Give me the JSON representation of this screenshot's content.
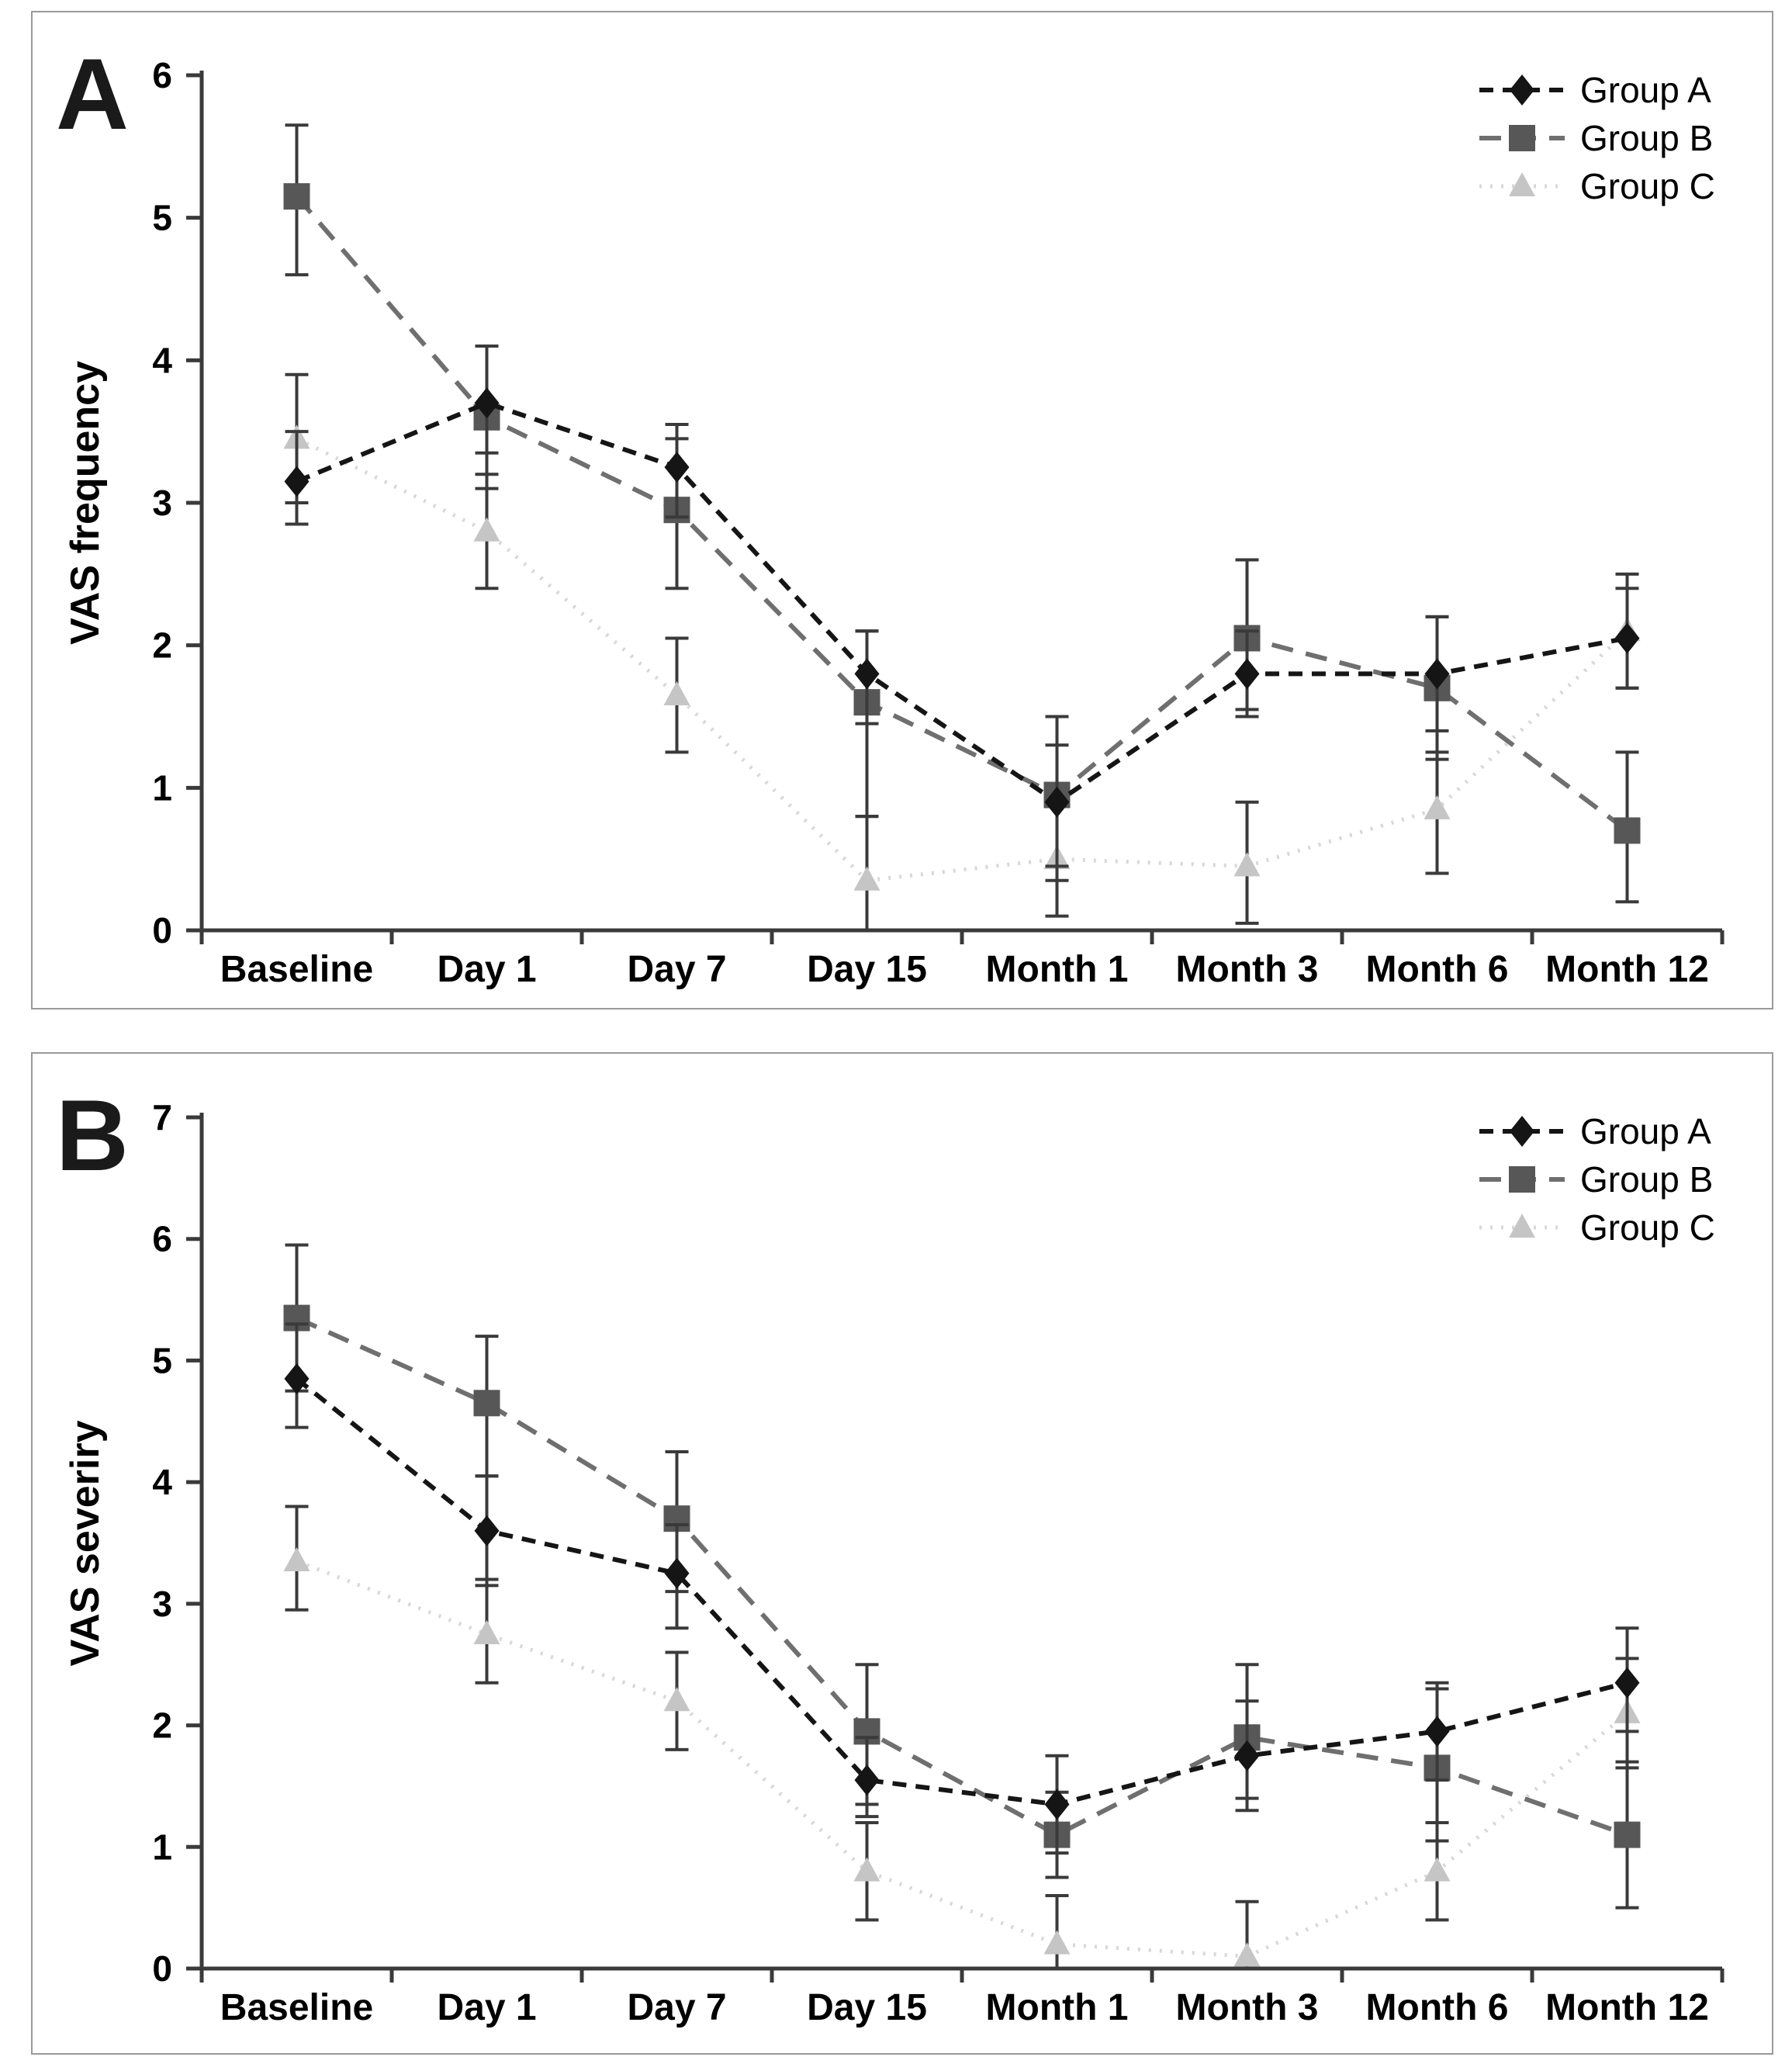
{
  "figure": {
    "type": "two-panel scientific line figure with error bars",
    "panel_count": 2
  },
  "style": {
    "axis_color": "#3a3a3a",
    "error_bar_color": "#3a3a3a",
    "text_color": "#000000",
    "panel_border_color": "#9a9a9a",
    "background": "#ffffff"
  },
  "chart_data": [
    {
      "type": "line",
      "panel_label": "A",
      "ylabel": "VAS frequency",
      "xlabel": "",
      "ylim": [
        0,
        6
      ],
      "yticks": [
        0,
        1,
        2,
        3,
        4,
        5,
        6
      ],
      "grid": false,
      "legend_position": "top-right",
      "categories": [
        "Baseline",
        "Day 1",
        "Day 7",
        "Day 15",
        "Month 1",
        "Month 3",
        "Month 6",
        "Month 12"
      ],
      "series": [
        {
          "name": "Group A",
          "marker": "diamond",
          "color": "#151515",
          "line_color": "#151515",
          "line_dash": "18 12",
          "line_width": 6,
          "values": [
            3.15,
            3.7,
            3.25,
            1.8,
            0.9,
            1.8,
            1.8,
            2.05
          ],
          "error_lower": [
            2.85,
            3.35,
            2.9,
            1.45,
            0.35,
            1.5,
            1.4,
            1.7
          ],
          "error_upper": [
            3.5,
            4.1,
            3.55,
            2.1,
            1.3,
            2.1,
            2.2,
            2.4
          ]
        },
        {
          "name": "Group B",
          "marker": "square",
          "color": "#575757",
          "line_color": "#6f6f6f",
          "line_dash": "28 17",
          "line_width": 6,
          "values": [
            5.15,
            3.6,
            2.95,
            1.6,
            0.95,
            2.05,
            1.7,
            0.7
          ],
          "error_lower": [
            4.6,
            3.1,
            2.4,
            0.8,
            0.45,
            1.55,
            1.2,
            0.2
          ],
          "error_upper": [
            5.65,
            4.1,
            3.45,
            2.1,
            1.5,
            2.6,
            2.2,
            1.25
          ]
        },
        {
          "name": "Group C",
          "marker": "triangle",
          "color": "#c5c5c5",
          "line_color": "#d8d8d8",
          "line_dash": "3 11",
          "line_width": 5,
          "values": [
            3.45,
            2.8,
            1.65,
            0.35,
            0.5,
            0.45,
            0.85,
            2.1
          ],
          "error_lower": [
            3.0,
            2.4,
            1.25,
            0.0,
            0.1,
            0.05,
            0.4,
            1.7
          ],
          "error_upper": [
            3.9,
            3.2,
            2.05,
            0.8,
            0.9,
            0.9,
            1.25,
            2.5
          ]
        }
      ]
    },
    {
      "type": "line",
      "panel_label": "B",
      "ylabel": "VAS severiry",
      "xlabel": "",
      "ylim": [
        0,
        7
      ],
      "yticks": [
        0,
        1,
        2,
        3,
        4,
        5,
        6,
        7
      ],
      "grid": false,
      "legend_position": "top-right",
      "categories": [
        "Baseline",
        "Day 1",
        "Day 7",
        "Day 15",
        "Month 1",
        "Month 3",
        "Month 6",
        "Month 12"
      ],
      "series": [
        {
          "name": "Group A",
          "marker": "diamond",
          "color": "#151515",
          "line_color": "#151515",
          "line_dash": "18 12",
          "line_width": 6,
          "values": [
            4.85,
            3.6,
            3.25,
            1.55,
            1.35,
            1.75,
            1.95,
            2.35
          ],
          "error_lower": [
            4.45,
            3.15,
            2.8,
            1.25,
            0.95,
            1.3,
            1.55,
            1.95
          ],
          "error_upper": [
            5.3,
            4.05,
            3.65,
            1.9,
            1.75,
            2.2,
            2.35,
            2.8
          ]
        },
        {
          "name": "Group B",
          "marker": "square",
          "color": "#575757",
          "line_color": "#6f6f6f",
          "line_dash": "28 17",
          "line_width": 6,
          "values": [
            5.35,
            4.65,
            3.7,
            1.95,
            1.1,
            1.9,
            1.65,
            1.1
          ],
          "error_lower": [
            4.75,
            4.05,
            3.1,
            1.35,
            0.75,
            1.4,
            1.05,
            0.5
          ],
          "error_upper": [
            5.95,
            5.2,
            4.25,
            2.5,
            1.45,
            2.5,
            2.3,
            1.7
          ]
        },
        {
          "name": "Group C",
          "marker": "triangle",
          "color": "#c5c5c5",
          "line_color": "#d8d8d8",
          "line_dash": "3 11",
          "line_width": 5,
          "values": [
            3.35,
            2.75,
            2.2,
            0.8,
            0.2,
            0.1,
            0.8,
            2.1
          ],
          "error_lower": [
            2.95,
            2.35,
            1.8,
            0.4,
            0.0,
            0.0,
            0.4,
            1.65
          ],
          "error_upper": [
            3.8,
            3.2,
            2.6,
            1.2,
            0.6,
            0.55,
            1.2,
            2.55
          ]
        }
      ]
    }
  ]
}
